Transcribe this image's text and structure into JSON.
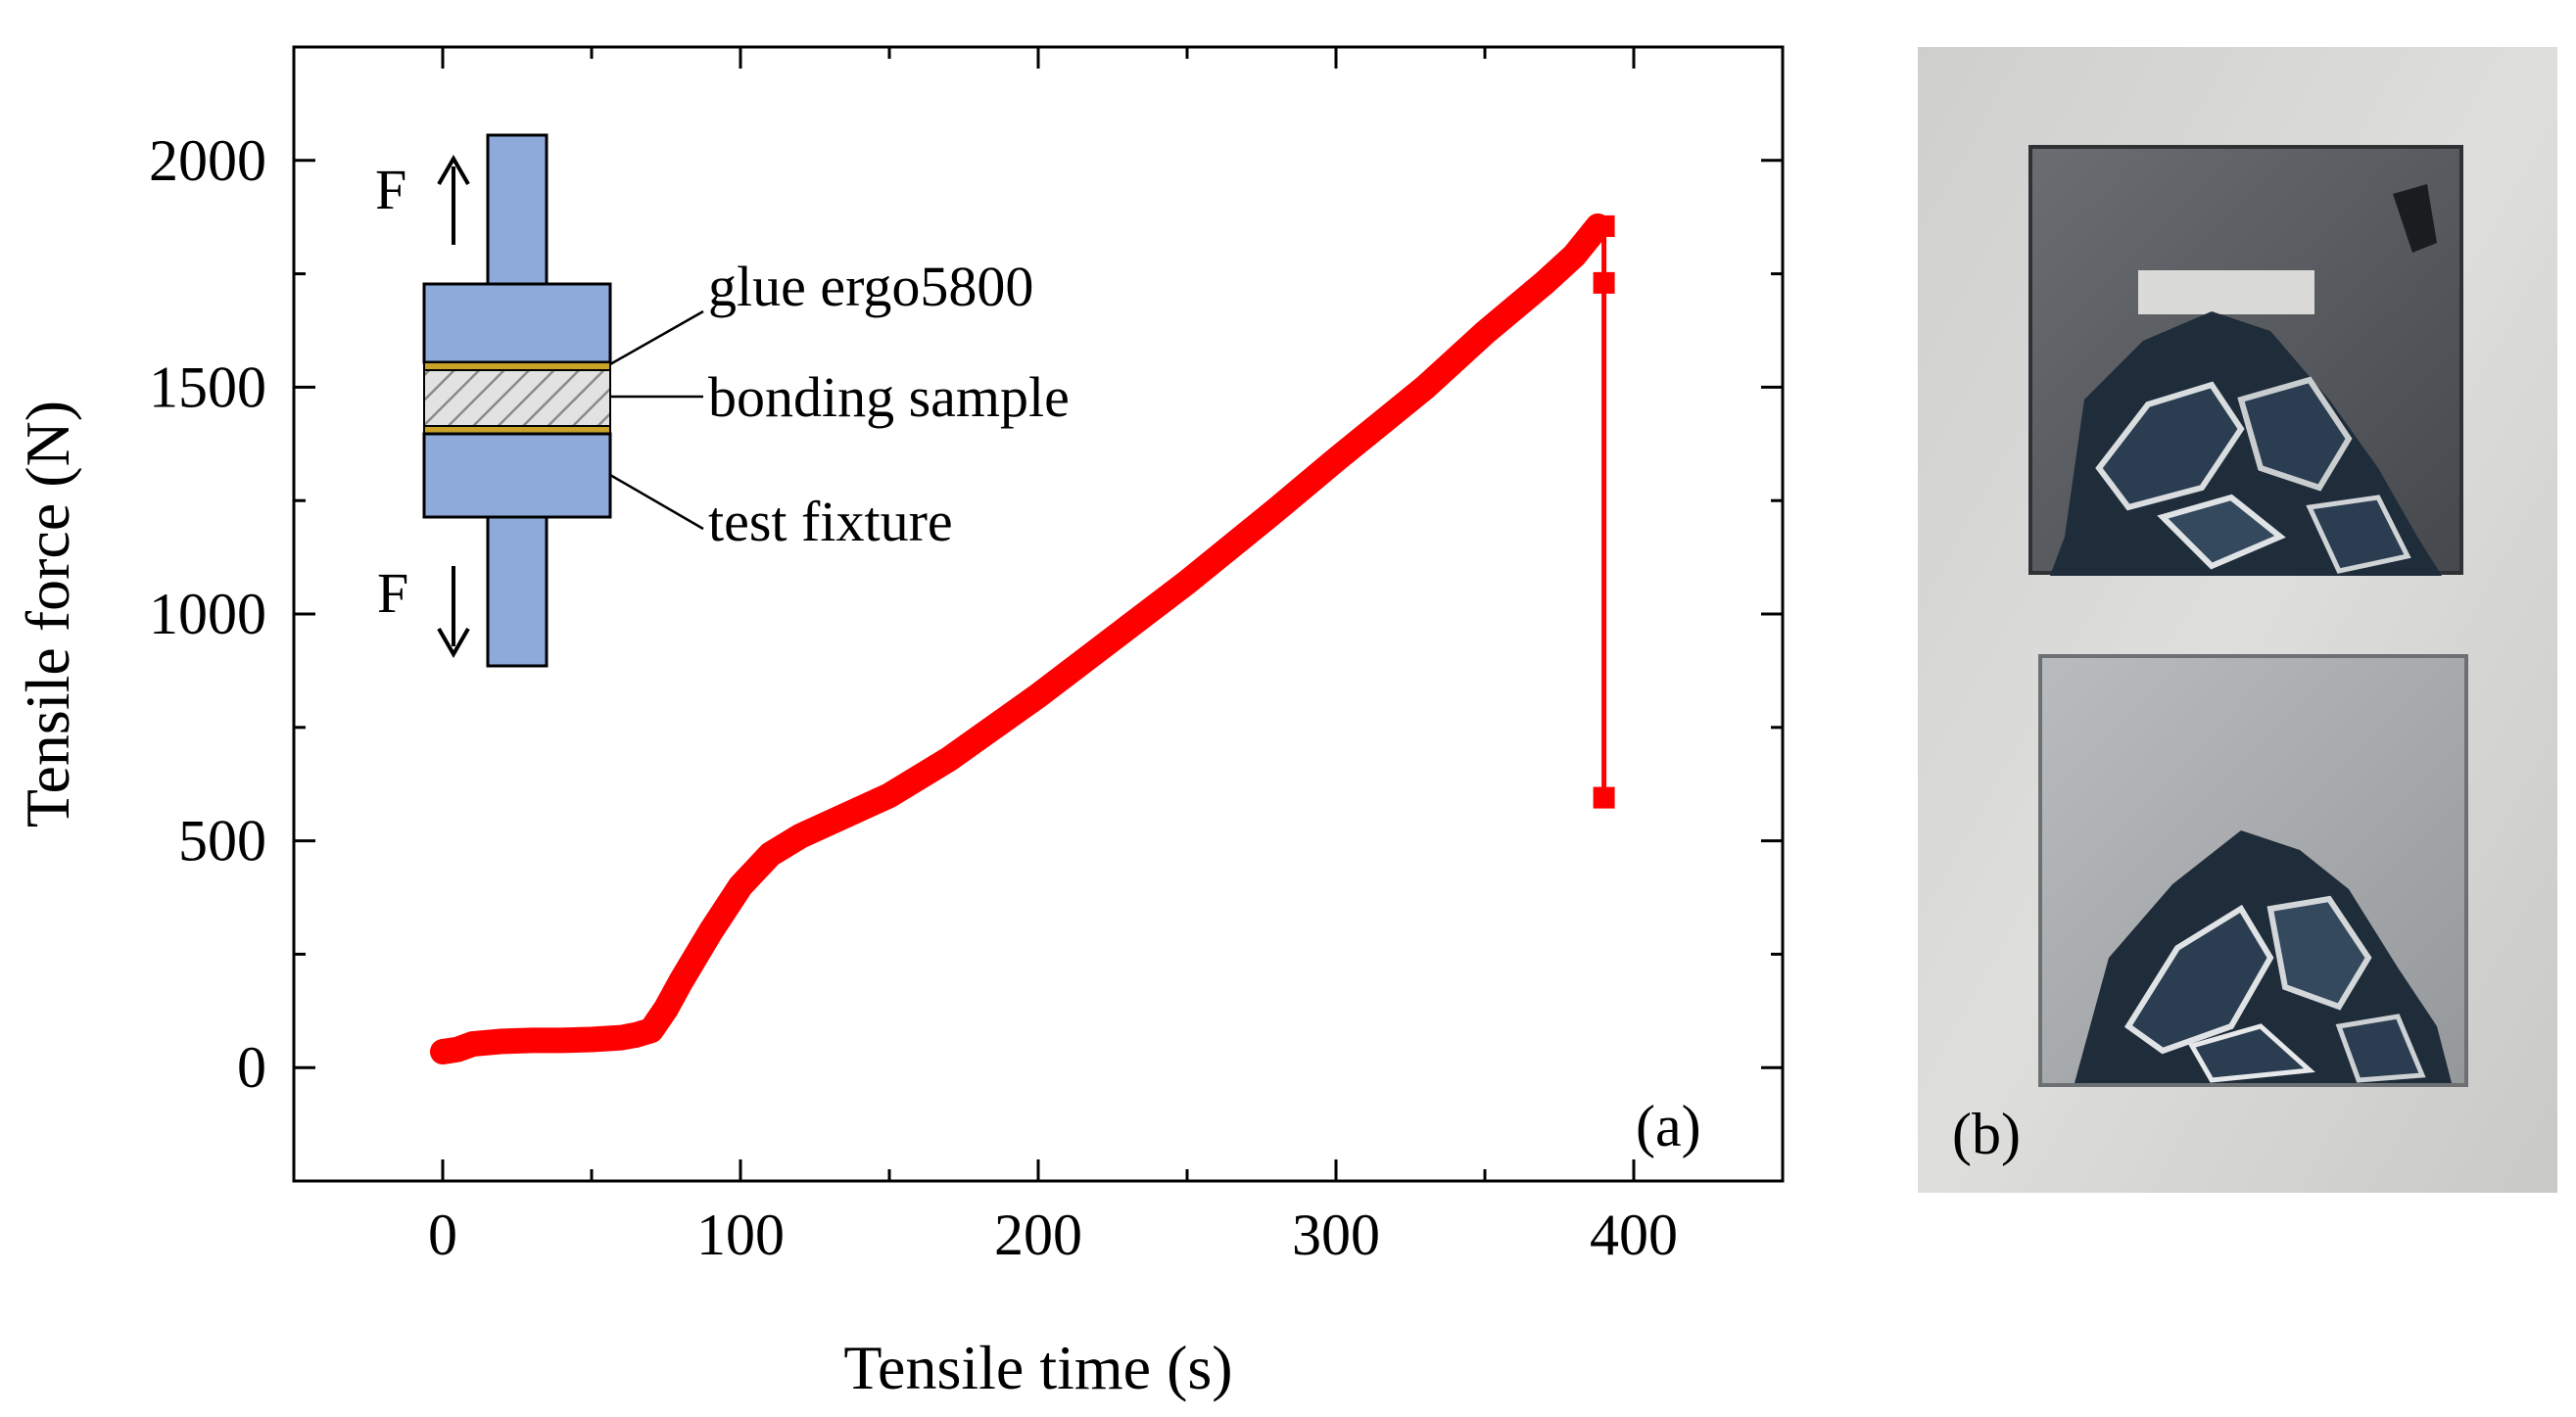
{
  "chart_data": {
    "type": "line",
    "xlabel": "Tensile time (s)",
    "ylabel": "Tensile force (N)",
    "xlim": [
      -50,
      450
    ],
    "ylim": [
      -250,
      2250
    ],
    "xticks": [
      0,
      100,
      200,
      300,
      400
    ],
    "yticks": [
      0,
      500,
      1000,
      1500,
      2000
    ],
    "grid": false,
    "panel_label": "(a)",
    "series": [
      {
        "color": "#ff0000",
        "x": [
          0,
          5,
          10,
          20,
          30,
          40,
          50,
          60,
          65,
          70,
          75,
          80,
          90,
          100,
          110,
          120,
          130,
          140,
          150,
          170,
          200,
          230,
          250,
          280,
          300,
          330,
          350,
          370,
          380,
          388
        ],
        "y": [
          35,
          40,
          52,
          58,
          60,
          60,
          62,
          66,
          72,
          82,
          130,
          190,
          300,
          400,
          470,
          510,
          540,
          570,
          600,
          680,
          820,
          970,
          1070,
          1230,
          1340,
          1500,
          1620,
          1730,
          1790,
          1855
        ]
      },
      {
        "color": "#ff0000",
        "x": [
          388,
          390,
          390,
          390
        ],
        "y": [
          1855,
          1855,
          1730,
          595
        ]
      }
    ],
    "inset": {
      "labels": {
        "force_top": "F",
        "force_bottom": "F",
        "glue": "glue ergo5800",
        "sample": "bonding sample",
        "fixture": "test fixture"
      },
      "colors": {
        "fixture": "#8eaadb",
        "glue": "#c9a227",
        "sample": "#d9d9d9"
      }
    }
  },
  "photo": {
    "panel_label": "(b)",
    "colors": {
      "background": "#d6d6d4",
      "top_block": "#55585c",
      "bottom_block": "#a7aaac",
      "fracture": "#1f2c3a"
    }
  }
}
